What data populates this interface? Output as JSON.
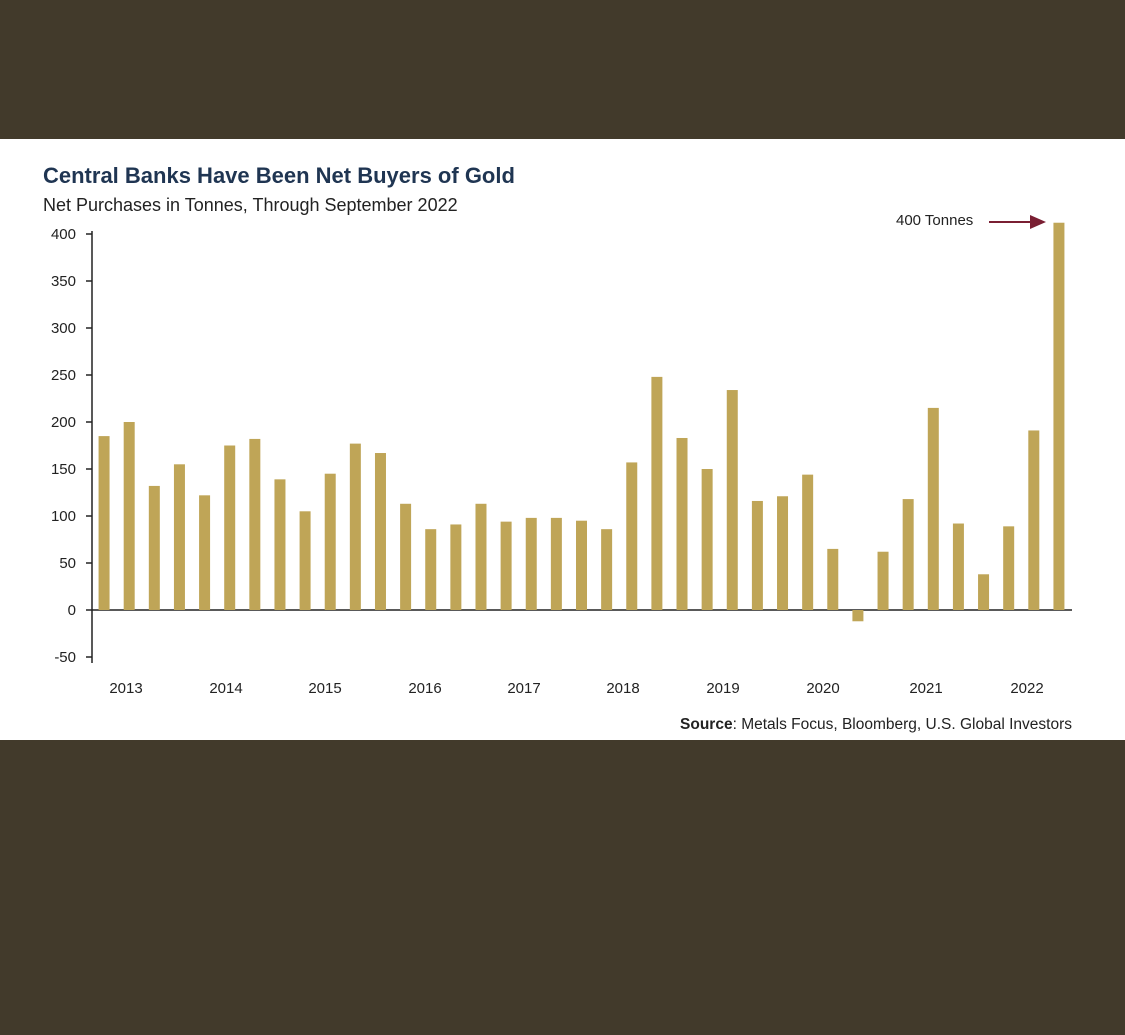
{
  "chart_data": {
    "type": "bar",
    "title": "Central Banks Have Been Net Buyers of Gold",
    "subtitle": "Net Purchases in Tonnes, Through September 2022",
    "xlabel": "",
    "ylabel": "",
    "ylim": [
      -50,
      400
    ],
    "yticks": [
      "400",
      "350",
      "300",
      "250",
      "200",
      "150",
      "100",
      "50",
      "0",
      "-50"
    ],
    "year_labels": [
      "2013",
      "2014",
      "2015",
      "2016",
      "2017",
      "2018",
      "2019",
      "2020",
      "2021",
      "2022"
    ],
    "series": [
      {
        "name": "Net Purchases (Tonnes)",
        "color": "#bfa557",
        "values": [
          185,
          200,
          132,
          155,
          122,
          175,
          182,
          139,
          105,
          145,
          177,
          167,
          113,
          86,
          91,
          113,
          94,
          98,
          98,
          95,
          86,
          157,
          248,
          183,
          150,
          234,
          116,
          121,
          144,
          65,
          -12,
          62,
          118,
          215,
          92,
          38,
          89,
          191,
          412
        ]
      }
    ],
    "annotation": {
      "text": "400 Tonnes",
      "arrow_color": "#7a1f33"
    },
    "source_label": "Source",
    "source_text": ": Metals Focus, Bloomberg, U.S. Global Investors"
  }
}
